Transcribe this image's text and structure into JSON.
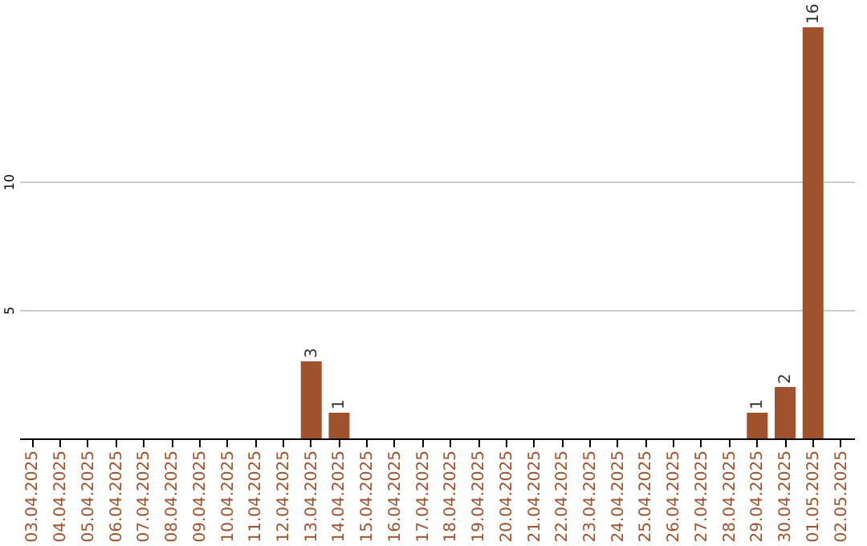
{
  "chart_data": {
    "type": "bar",
    "categories": [
      "03.04.2025",
      "04.04.2025",
      "05.04.2025",
      "06.04.2025",
      "07.04.2025",
      "08.04.2025",
      "09.04.2025",
      "10.04.2025",
      "11.04.2025",
      "12.04.2025",
      "13.04.2025",
      "14.04.2025",
      "15.04.2025",
      "16.04.2025",
      "17.04.2025",
      "18.04.2025",
      "19.04.2025",
      "20.04.2025",
      "21.04.2025",
      "22.04.2025",
      "23.04.2025",
      "24.04.2025",
      "25.04.2025",
      "26.04.2025",
      "27.04.2025",
      "28.04.2025",
      "29.04.2025",
      "30.04.2025",
      "01.05.2025",
      "02.05.2025"
    ],
    "values": [
      0,
      0,
      0,
      0,
      0,
      0,
      0,
      0,
      0,
      0,
      3,
      1,
      0,
      0,
      0,
      0,
      0,
      0,
      0,
      0,
      0,
      0,
      0,
      0,
      0,
      0,
      1,
      2,
      16,
      0
    ],
    "value_labels": [
      null,
      null,
      null,
      null,
      null,
      null,
      null,
      null,
      null,
      null,
      "3",
      "1",
      null,
      null,
      null,
      null,
      null,
      null,
      null,
      null,
      null,
      null,
      null,
      null,
      null,
      null,
      "1",
      "2",
      "16",
      null
    ],
    "color": "#a0522d",
    "ylim": [
      0,
      16
    ],
    "yticks": [
      5,
      10
    ],
    "grid": "y"
  }
}
